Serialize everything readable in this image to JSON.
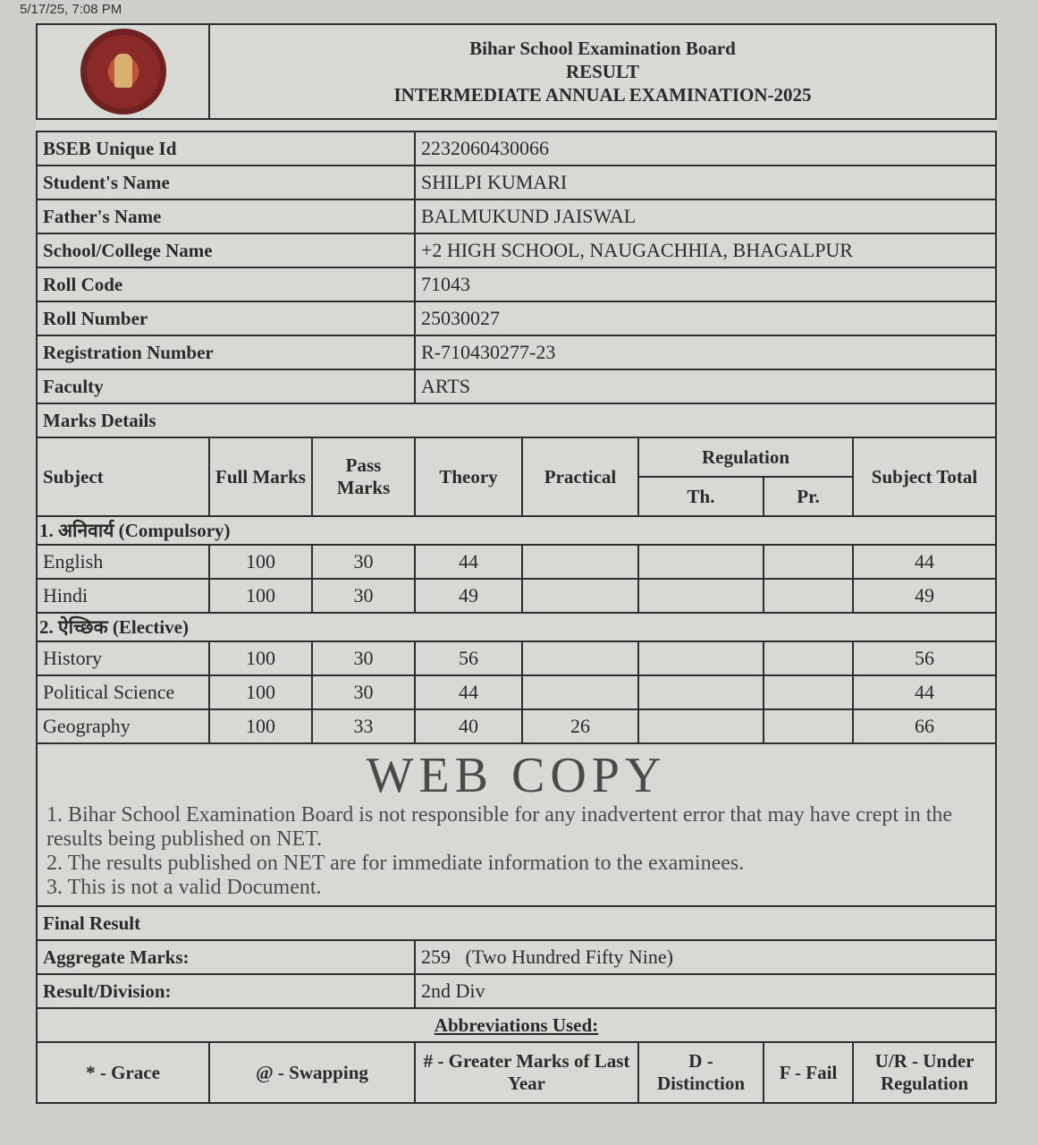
{
  "timestamp": "5/17/25, 7:08 PM",
  "header": {
    "board": "Bihar School Examination Board",
    "result": "RESULT",
    "exam": "INTERMEDIATE ANNUAL EXAMINATION-2025"
  },
  "info": [
    {
      "label": "BSEB Unique Id",
      "value": "2232060430066"
    },
    {
      "label": "Student's Name",
      "value": "SHILPI KUMARI"
    },
    {
      "label": "Father's Name",
      "value": "BALMUKUND JAISWAL"
    },
    {
      "label": "School/College Name",
      "value": "+2 HIGH SCHOOL, NAUGACHHIA, BHAGALPUR"
    },
    {
      "label": "Roll Code",
      "value": "71043"
    },
    {
      "label": "Roll Number",
      "value": "25030027"
    },
    {
      "label": "Registration Number",
      "value": "R-710430277-23"
    },
    {
      "label": "Faculty",
      "value": "ARTS"
    }
  ],
  "marks_details": "Marks Details",
  "columns": {
    "subject": "Subject",
    "full": "Full Marks",
    "pass": "Pass Marks",
    "theory": "Theory",
    "practical": "Practical",
    "regulation": "Regulation",
    "th": "Th.",
    "pr": "Pr.",
    "total": "Subject Total"
  },
  "compulsory": {
    "label": "1. अनिवार्य (Compulsory)",
    "rows": [
      {
        "subject": "English",
        "full": "100",
        "pass": "30",
        "theory": "44",
        "practical": "",
        "th": "",
        "pr": "",
        "total": "44"
      },
      {
        "subject": "Hindi",
        "full": "100",
        "pass": "30",
        "theory": "49",
        "practical": "",
        "th": "",
        "pr": "",
        "total": "49"
      }
    ]
  },
  "elective": {
    "label": "2. ऐच्छिक (Elective)",
    "rows": [
      {
        "subject": "History",
        "full": "100",
        "pass": "30",
        "theory": "56",
        "practical": "",
        "th": "",
        "pr": "",
        "total": "56"
      },
      {
        "subject": "Political Science",
        "full": "100",
        "pass": "30",
        "theory": "44",
        "practical": "",
        "th": "",
        "pr": "",
        "total": "44"
      },
      {
        "subject": "Geography",
        "full": "100",
        "pass": "33",
        "theory": "40",
        "practical": "26",
        "th": "",
        "pr": "",
        "total": "66"
      }
    ]
  },
  "final": {
    "label": "Final Result",
    "aggregate_label": "Aggregate Marks:",
    "aggregate_value": "259   (Two Hundred Fifty Nine)",
    "division_label": "Result/Division:",
    "division_value": "2nd Div"
  },
  "abbreviations": {
    "title": "Abbreviations Used:",
    "items": [
      "* - Grace",
      "@ - Swapping",
      "# - Greater Marks of Last Year",
      "D - Distinction",
      "F - Fail",
      "U/R - Under Regulation"
    ]
  },
  "watermark": "WEB COPY",
  "disclaimer": [
    "1. Bihar School Examination Board is not responsible for any inadvertent error that may have crept in the results being published on NET.",
    "2. The results published on NET are for immediate information to the examinees.",
    "3. This is not a valid Document."
  ]
}
